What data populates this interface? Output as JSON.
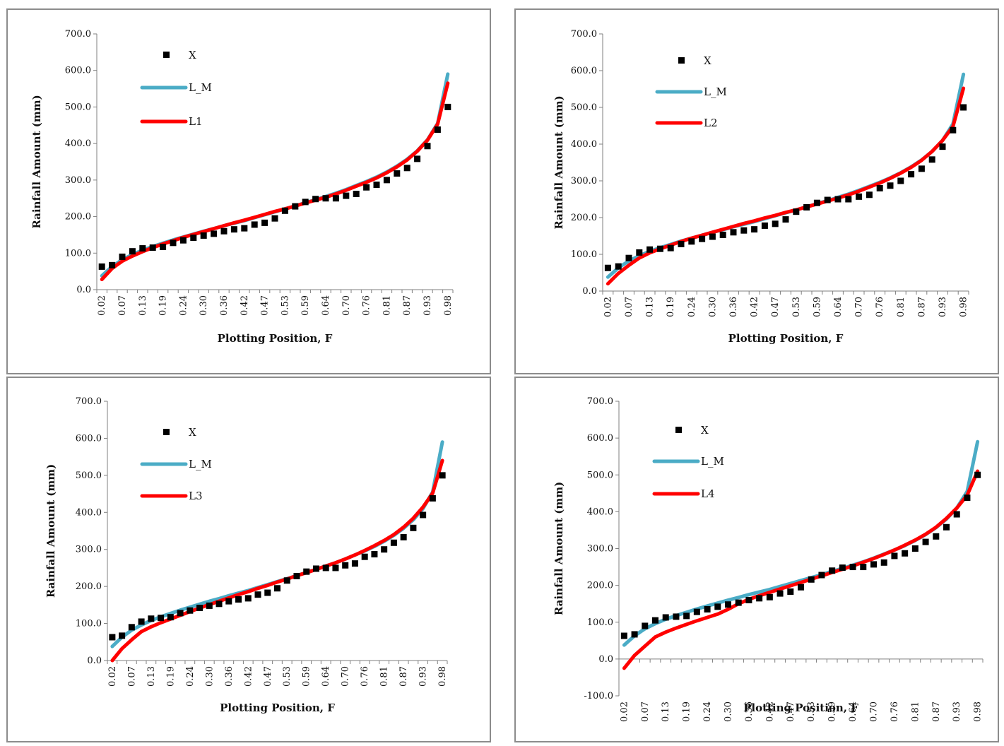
{
  "chart_data": [
    {
      "type": "line",
      "xlabel": "Plotting Position, F",
      "ylabel": "Rainfall Amount (mm)",
      "ylim": [
        0,
        700
      ],
      "yticks": [
        "0.0",
        "100.0",
        "200.0",
        "300.0",
        "400.0",
        "500.0",
        "600.0",
        "700.0"
      ],
      "x_tick_labels": [
        "0.02",
        "0.07",
        "0.13",
        "0.19",
        "0.24",
        "0.30",
        "0.36",
        "0.42",
        "0.47",
        "0.53",
        "0.59",
        "0.64",
        "0.70",
        "0.76",
        "0.81",
        "0.87",
        "0.93",
        "0.98"
      ],
      "x_label_every": 2,
      "legend_position": "top-left",
      "series": [
        {
          "name": "X",
          "kind": "scatter",
          "color": "#000000",
          "values": [
            63,
            67,
            90,
            105,
            113,
            115,
            117,
            128,
            135,
            142,
            148,
            153,
            160,
            165,
            168,
            178,
            183,
            195,
            216,
            228,
            240,
            248,
            250,
            250,
            257,
            262,
            280,
            287,
            300,
            318,
            333,
            358,
            393,
            438,
            500
          ]
        },
        {
          "name": "L_M",
          "kind": "line",
          "color": "#4bacc6",
          "values": [
            38,
            63,
            82,
            96,
            108,
            118,
            127,
            136,
            144,
            152,
            160,
            167,
            175,
            182,
            189,
            197,
            205,
            213,
            221,
            229,
            238,
            246,
            255,
            264,
            274,
            285,
            296,
            308,
            322,
            338,
            357,
            380,
            410,
            455,
            590
          ]
        },
        {
          "name": "L1",
          "kind": "line",
          "color": "#ff0000",
          "values": [
            28,
            58,
            78,
            92,
            104,
            115,
            125,
            134,
            143,
            151,
            159,
            167,
            175,
            183,
            190,
            198,
            206,
            214,
            221,
            229,
            237,
            245,
            253,
            262,
            272,
            283,
            294,
            306,
            320,
            336,
            355,
            379,
            409,
            453,
            565
          ]
        }
      ]
    },
    {
      "type": "line",
      "xlabel": "Plotting Position, F",
      "ylabel": "Rainfall Amount (mm)",
      "ylim": [
        0,
        700
      ],
      "yticks": [
        "0.0",
        "100.0",
        "200.0",
        "300.0",
        "400.0",
        "500.0",
        "600.0",
        "700.0"
      ],
      "x_tick_labels": [
        "0.02",
        "0.07",
        "0.13",
        "0.19",
        "0.24",
        "0.30",
        "0.36",
        "0.42",
        "0.47",
        "0.53",
        "0.59",
        "0.64",
        "0.70",
        "0.76",
        "0.81",
        "0.87",
        "0.93",
        "0.98"
      ],
      "x_label_every": 2,
      "legend_position": "top-left",
      "series": [
        {
          "name": "X",
          "kind": "scatter",
          "color": "#000000",
          "values": [
            63,
            67,
            90,
            105,
            113,
            115,
            117,
            128,
            135,
            142,
            148,
            153,
            160,
            165,
            168,
            178,
            183,
            195,
            216,
            228,
            240,
            248,
            250,
            250,
            257,
            262,
            280,
            287,
            300,
            318,
            333,
            358,
            393,
            438,
            500
          ]
        },
        {
          "name": "L_M",
          "kind": "line",
          "color": "#4bacc6",
          "values": [
            38,
            63,
            82,
            96,
            108,
            118,
            127,
            136,
            144,
            152,
            160,
            167,
            175,
            182,
            189,
            197,
            205,
            213,
            221,
            229,
            238,
            246,
            255,
            264,
            274,
            285,
            296,
            308,
            322,
            338,
            357,
            380,
            410,
            455,
            590
          ]
        },
        {
          "name": "L2",
          "kind": "line",
          "color": "#ff0000",
          "values": [
            20,
            48,
            70,
            90,
            104,
            115,
            125,
            135,
            144,
            152,
            160,
            168,
            176,
            184,
            191,
            199,
            206,
            214,
            221,
            229,
            237,
            245,
            253,
            262,
            272,
            283,
            294,
            307,
            321,
            337,
            356,
            380,
            410,
            448,
            552
          ]
        }
      ]
    },
    {
      "type": "line",
      "xlabel": "Plotting Position, F",
      "ylabel": "Rainfall Amount (mm)",
      "ylim": [
        0,
        700
      ],
      "yticks": [
        "0.0",
        "100.0",
        "200.0",
        "300.0",
        "400.0",
        "500.0",
        "600.0",
        "700.0"
      ],
      "x_tick_labels": [
        "0.02",
        "0.07",
        "0.13",
        "0.19",
        "0.24",
        "0.30",
        "0.36",
        "0.42",
        "0.47",
        "0.53",
        "0.59",
        "0.64",
        "0.70",
        "0.76",
        "0.81",
        "0.87",
        "0.93",
        "0.98"
      ],
      "x_label_every": 2,
      "legend_position": "top-left",
      "series": [
        {
          "name": "X",
          "kind": "scatter",
          "color": "#000000",
          "values": [
            63,
            67,
            90,
            105,
            113,
            115,
            117,
            128,
            135,
            142,
            148,
            153,
            160,
            165,
            168,
            178,
            183,
            195,
            216,
            228,
            240,
            248,
            250,
            250,
            257,
            262,
            280,
            287,
            300,
            318,
            333,
            358,
            393,
            438,
            500
          ]
        },
        {
          "name": "L_M",
          "kind": "line",
          "color": "#4bacc6",
          "values": [
            38,
            63,
            82,
            96,
            108,
            118,
            127,
            136,
            144,
            152,
            160,
            167,
            175,
            182,
            189,
            197,
            205,
            213,
            221,
            229,
            238,
            246,
            255,
            264,
            274,
            285,
            296,
            308,
            322,
            338,
            357,
            380,
            410,
            455,
            590
          ]
        },
        {
          "name": "L3",
          "kind": "line",
          "color": "#ff0000",
          "values": [
            0,
            32,
            56,
            78,
            91,
            102,
            112,
            122,
            132,
            142,
            151,
            160,
            169,
            178,
            186,
            195,
            203,
            212,
            220,
            229,
            237,
            246,
            255,
            264,
            274,
            285,
            297,
            310,
            324,
            340,
            360,
            384,
            414,
            452,
            540
          ]
        }
      ]
    },
    {
      "type": "line",
      "xlabel": "Plotting Position, F",
      "ylabel": "Rainfall Amount (mm)",
      "ylim": [
        -100,
        700
      ],
      "yticks": [
        "-100.0",
        "0.0",
        "100.0",
        "200.0",
        "300.0",
        "400.0",
        "500.0",
        "600.0",
        "700.0"
      ],
      "x_tick_labels": [
        "0.02",
        "0.07",
        "0.13",
        "0.19",
        "0.24",
        "0.30",
        "0.36",
        "0.42",
        "0.47",
        "0.53",
        "0.59",
        "0.64",
        "0.70",
        "0.76",
        "0.81",
        "0.87",
        "0.93",
        "0.98"
      ],
      "x_label_every": 2,
      "legend_position": "top-left",
      "series": [
        {
          "name": "X",
          "kind": "scatter",
          "color": "#000000",
          "values": [
            63,
            67,
            90,
            105,
            113,
            115,
            117,
            128,
            135,
            142,
            148,
            153,
            160,
            165,
            168,
            178,
            183,
            195,
            216,
            228,
            240,
            248,
            250,
            250,
            257,
            262,
            280,
            287,
            300,
            318,
            333,
            358,
            393,
            438,
            500
          ]
        },
        {
          "name": "L_M",
          "kind": "line",
          "color": "#4bacc6",
          "values": [
            38,
            63,
            82,
            96,
            108,
            118,
            127,
            136,
            144,
            152,
            160,
            167,
            175,
            182,
            189,
            197,
            205,
            213,
            221,
            229,
            238,
            246,
            255,
            264,
            274,
            285,
            296,
            308,
            322,
            338,
            357,
            380,
            410,
            455,
            590
          ]
        },
        {
          "name": "L4",
          "kind": "line",
          "color": "#ff0000",
          "values": [
            -25,
            10,
            35,
            60,
            73,
            84,
            94,
            104,
            113,
            122,
            135,
            150,
            162,
            172,
            181,
            190,
            199,
            208,
            217,
            226,
            235,
            244,
            253,
            263,
            273,
            284,
            296,
            309,
            323,
            339,
            358,
            382,
            410,
            445,
            510
          ]
        }
      ]
    }
  ]
}
